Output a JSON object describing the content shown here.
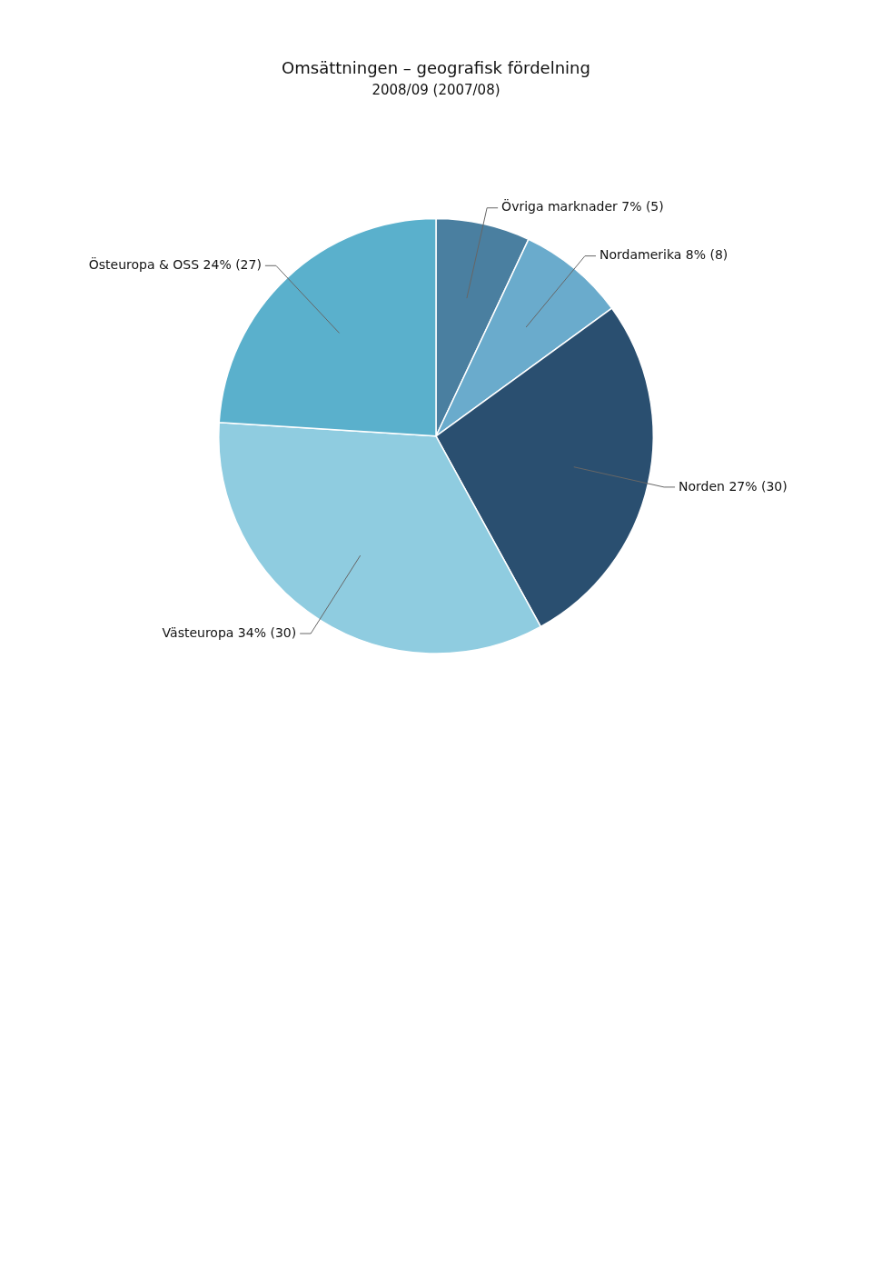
{
  "chart_data": {
    "type": "pie",
    "title": "Omsättningen – geografisk fördelning",
    "subtitle": "2008/09 (2007/08)",
    "categories": [
      "Övriga marknader 7% (5)",
      "Nordamerika 8% (8)",
      "Norden 27% (30)",
      "Västeuropa 34% (30)",
      "Östeuropa & OSS 24% (27)"
    ],
    "values": [
      7,
      8,
      27,
      34,
      24
    ],
    "colors": [
      "#4a7fa0",
      "#6aabcc",
      "#2a4f70",
      "#8fcce0",
      "#5ab0cc"
    ]
  }
}
